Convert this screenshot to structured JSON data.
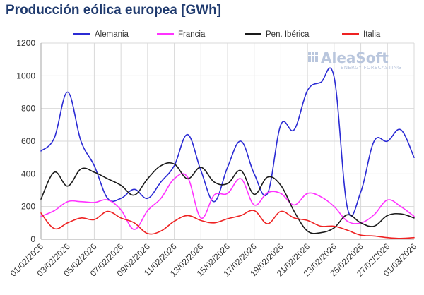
{
  "chart_data": {
    "type": "line",
    "title": "Producción eólica europea [GWh]",
    "xlabel": "",
    "ylabel": "",
    "ylim": [
      0,
      1200
    ],
    "yticks": [
      0,
      200,
      400,
      600,
      800,
      1000,
      1200
    ],
    "grid": true,
    "legend_position": "top",
    "x": [
      "01/02/2026",
      "02/02/2026",
      "03/02/2026",
      "04/02/2026",
      "05/02/2026",
      "06/02/2026",
      "07/02/2026",
      "08/02/2026",
      "09/02/2026",
      "10/02/2026",
      "11/02/2026",
      "12/02/2026",
      "13/02/2026",
      "14/02/2026",
      "15/02/2026",
      "16/02/2026",
      "17/02/2026",
      "18/02/2026",
      "19/02/2026",
      "20/02/2026",
      "21/02/2026",
      "22/02/2026",
      "23/02/2026",
      "24/02/2026",
      "25/02/2026",
      "26/02/2026",
      "27/02/2026",
      "28/02/2026",
      "01/03/2026"
    ],
    "xtick_labels": [
      "01/02/2026",
      "03/02/2026",
      "05/02/2026",
      "07/02/2026",
      "09/02/2026",
      "11/02/2026",
      "13/02/2026",
      "15/02/2026",
      "17/02/2026",
      "19/02/2026",
      "21/02/2026",
      "23/02/2026",
      "25/02/2026",
      "27/02/2026",
      "01/03/2026"
    ],
    "series": [
      {
        "name": "Alemania",
        "color": "#2b2bd4",
        "values": [
          540,
          620,
          900,
          600,
          450,
          250,
          250,
          305,
          250,
          350,
          450,
          640,
          420,
          230,
          440,
          600,
          400,
          280,
          700,
          670,
          910,
          960,
          990,
          190,
          290,
          600,
          600,
          670,
          500
        ]
      },
      {
        "name": "Francia",
        "color": "#ff33ff",
        "values": [
          140,
          175,
          230,
          230,
          225,
          240,
          180,
          60,
          175,
          250,
          370,
          380,
          130,
          270,
          280,
          370,
          210,
          285,
          280,
          210,
          280,
          260,
          200,
          110,
          100,
          150,
          240,
          200,
          140
        ]
      },
      {
        "name": "Pen. Ibérica",
        "color": "#1a1a1a",
        "values": [
          245,
          410,
          325,
          430,
          410,
          370,
          330,
          270,
          370,
          450,
          460,
          370,
          440,
          350,
          340,
          420,
          275,
          380,
          330,
          170,
          50,
          40,
          70,
          150,
          100,
          80,
          145,
          155,
          130
        ]
      },
      {
        "name": "Italia",
        "color": "#ee2222",
        "values": [
          160,
          65,
          100,
          130,
          120,
          170,
          130,
          100,
          35,
          50,
          110,
          145,
          115,
          100,
          125,
          145,
          175,
          95,
          170,
          130,
          115,
          80,
          80,
          55,
          25,
          20,
          10,
          5,
          10
        ]
      }
    ]
  },
  "watermark": {
    "brand": "AleaSoft",
    "tagline": "ENERGY FORECASTING"
  }
}
